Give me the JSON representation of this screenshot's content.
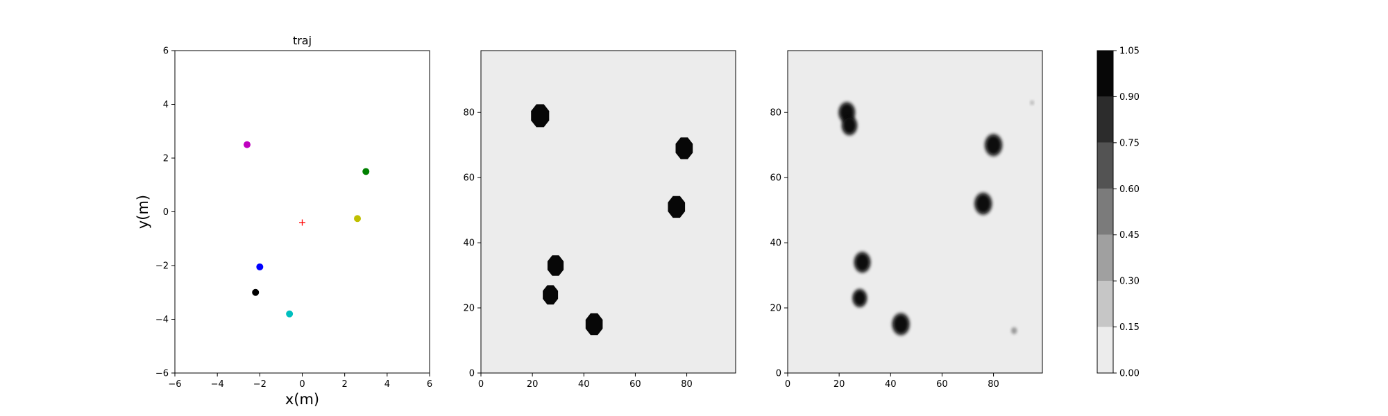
{
  "figure": {
    "charts": [
      "traj",
      "occupancy-map-1",
      "occupancy-map-2",
      "colorbar"
    ]
  },
  "chart_data": [
    {
      "type": "scatter",
      "title": "traj",
      "xlabel": "x(m)",
      "ylabel": "y(m)",
      "xlim": [
        -6,
        6
      ],
      "ylim": [
        -6,
        6
      ],
      "xticks": [
        -6,
        -4,
        -2,
        0,
        2,
        4,
        6
      ],
      "yticks": [
        -6,
        -4,
        -2,
        0,
        2,
        4,
        6
      ],
      "tick_labels": [
        "−6",
        "−4",
        "−2",
        "0",
        "2",
        "4",
        "6"
      ],
      "grid": false,
      "points": [
        {
          "x": -2.6,
          "y": 2.5,
          "color": "#bf00bf",
          "marker": "circle"
        },
        {
          "x": 3.0,
          "y": 1.5,
          "color": "#008000",
          "marker": "circle"
        },
        {
          "x": 2.6,
          "y": -0.25,
          "color": "#bfbf00",
          "marker": "circle"
        },
        {
          "x": -2.0,
          "y": -2.05,
          "color": "#0000ff",
          "marker": "circle"
        },
        {
          "x": -2.2,
          "y": -3.0,
          "color": "#000000",
          "marker": "circle"
        },
        {
          "x": -0.6,
          "y": -3.8,
          "color": "#00bfbf",
          "marker": "circle"
        },
        {
          "x": 0.0,
          "y": -0.4,
          "color": "#ff0000",
          "marker": "plus"
        }
      ]
    },
    {
      "type": "heatmap",
      "title": "",
      "xlim": [
        0,
        99
      ],
      "ylim": [
        0,
        99
      ],
      "xticks": [
        0,
        20,
        40,
        60,
        80
      ],
      "yticks": [
        0,
        20,
        40,
        60,
        80
      ],
      "background_value": 0.05,
      "style": "sharp",
      "blobs": [
        {
          "x": 23,
          "y": 79,
          "r": 3.8,
          "value": 1.0
        },
        {
          "x": 79,
          "y": 69,
          "r": 3.6,
          "value": 1.0
        },
        {
          "x": 76,
          "y": 51,
          "r": 3.6,
          "value": 1.0
        },
        {
          "x": 29,
          "y": 33,
          "r": 3.4,
          "value": 1.0
        },
        {
          "x": 27,
          "y": 24,
          "r": 3.2,
          "value": 1.0
        },
        {
          "x": 44,
          "y": 15,
          "r": 3.6,
          "value": 1.0
        }
      ]
    },
    {
      "type": "heatmap",
      "title": "",
      "xlim": [
        0,
        99
      ],
      "ylim": [
        0,
        99
      ],
      "xticks": [
        0,
        20,
        40,
        60,
        80
      ],
      "yticks": [
        0,
        20,
        40,
        60,
        80
      ],
      "background_value": 0.05,
      "style": "soft",
      "blobs": [
        {
          "x": 23,
          "y": 80,
          "r": 3.2,
          "value": 1.0
        },
        {
          "x": 24,
          "y": 76,
          "r": 3.0,
          "value": 1.0
        },
        {
          "x": 80,
          "y": 70,
          "r": 3.4,
          "value": 1.0
        },
        {
          "x": 76,
          "y": 52,
          "r": 3.4,
          "value": 1.0
        },
        {
          "x": 29,
          "y": 34,
          "r": 3.2,
          "value": 1.0
        },
        {
          "x": 28,
          "y": 23,
          "r": 2.8,
          "value": 1.0
        },
        {
          "x": 44,
          "y": 15,
          "r": 3.4,
          "value": 1.0
        },
        {
          "x": 88,
          "y": 13,
          "r": 1.0,
          "value": 0.4
        },
        {
          "x": 95,
          "y": 83,
          "r": 0.6,
          "value": 0.3
        }
      ]
    },
    {
      "type": "colorbar",
      "levels": [
        0.0,
        0.15,
        0.3,
        0.45,
        0.6,
        0.75,
        0.9,
        1.05
      ],
      "tick_labels": [
        "0.00",
        "0.15",
        "0.30",
        "0.45",
        "0.60",
        "0.75",
        "0.90",
        "1.05"
      ],
      "colors": [
        "#ececec",
        "#c6c6c6",
        "#a0a0a0",
        "#7b7b7b",
        "#535353",
        "#2c2c2c",
        "#070707"
      ]
    }
  ]
}
